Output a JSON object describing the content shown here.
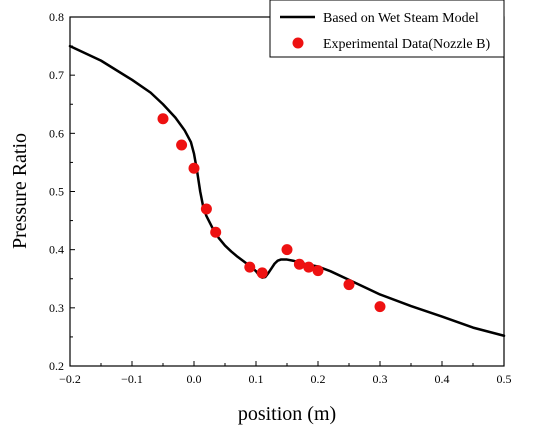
{
  "chart_data": {
    "type": "line",
    "xlabel": "position (m)",
    "ylabel": "Pressure Ratio",
    "xlim": [
      -0.2,
      0.5
    ],
    "ylim": [
      0.2,
      0.8
    ],
    "xticks": [
      -0.2,
      -0.1,
      0.0,
      0.1,
      0.2,
      0.3,
      0.4,
      0.5
    ],
    "xtick_labels": [
      "−0.2",
      "−0.1",
      "0.0",
      "0.1",
      "0.2",
      "0.3",
      "0.4",
      "0.5"
    ],
    "yticks": [
      0.2,
      0.3,
      0.4,
      0.5,
      0.6,
      0.7,
      0.8
    ],
    "ytick_labels": [
      "0.2",
      "0.3",
      "0.4",
      "0.5",
      "0.6",
      "0.7",
      "0.8"
    ],
    "grid": false,
    "legend_position": "top-right",
    "series": [
      {
        "name": "Based on Wet Steam Model",
        "kind": "line",
        "color": "#000000",
        "x": [
          -0.2,
          -0.15,
          -0.1,
          -0.07,
          -0.05,
          -0.03,
          -0.015,
          -0.005,
          0.0,
          0.005,
          0.01,
          0.015,
          0.02,
          0.03,
          0.04,
          0.05,
          0.06,
          0.07,
          0.08,
          0.09,
          0.1,
          0.105,
          0.11,
          0.115,
          0.12,
          0.125,
          0.13,
          0.135,
          0.14,
          0.15,
          0.16,
          0.17,
          0.18,
          0.19,
          0.2,
          0.22,
          0.25,
          0.28,
          0.3,
          0.35,
          0.4,
          0.45,
          0.5
        ],
        "y": [
          0.75,
          0.725,
          0.692,
          0.67,
          0.65,
          0.627,
          0.605,
          0.585,
          0.565,
          0.535,
          0.5,
          0.473,
          0.458,
          0.437,
          0.42,
          0.407,
          0.397,
          0.388,
          0.38,
          0.372,
          0.363,
          0.356,
          0.352,
          0.353,
          0.36,
          0.368,
          0.376,
          0.381,
          0.383,
          0.383,
          0.381,
          0.378,
          0.375,
          0.373,
          0.371,
          0.363,
          0.348,
          0.333,
          0.323,
          0.303,
          0.285,
          0.266,
          0.252
        ]
      },
      {
        "name": "Experimental Data(Nozzle B)",
        "kind": "scatter",
        "color": "#ee1111",
        "x": [
          -0.05,
          -0.02,
          0.0,
          0.02,
          0.035,
          0.09,
          0.11,
          0.15,
          0.17,
          0.185,
          0.2,
          0.25,
          0.3
        ],
        "y": [
          0.625,
          0.58,
          0.54,
          0.47,
          0.43,
          0.37,
          0.36,
          0.4,
          0.375,
          0.37,
          0.364,
          0.34,
          0.302
        ]
      }
    ]
  }
}
